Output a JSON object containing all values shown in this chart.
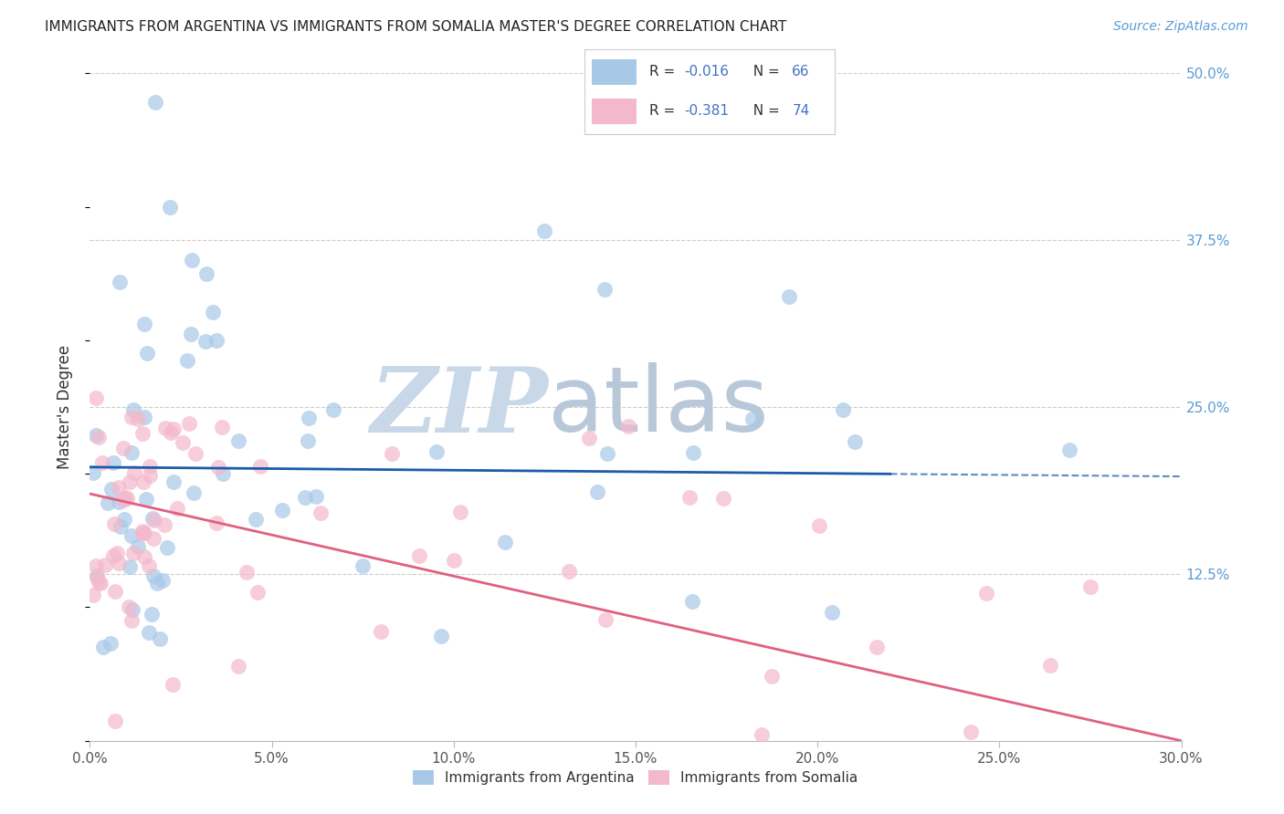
{
  "title": "IMMIGRANTS FROM ARGENTINA VS IMMIGRANTS FROM SOMALIA MASTER'S DEGREE CORRELATION CHART",
  "source": "Source: ZipAtlas.com",
  "ylabel": "Master's Degree",
  "r_argentina": -0.016,
  "n_argentina": 66,
  "r_somalia": -0.381,
  "n_somalia": 74,
  "xlim": [
    0.0,
    0.3
  ],
  "ylim": [
    0.0,
    0.5
  ],
  "xticks": [
    0.0,
    0.05,
    0.1,
    0.15,
    0.2,
    0.25,
    0.3
  ],
  "yticks_right": [
    0.125,
    0.25,
    0.375,
    0.5
  ],
  "color_argentina": "#a8c8e8",
  "color_somalia": "#f4b8cc",
  "trendline_argentina": "#1a5ca8",
  "trendline_somalia": "#e06080",
  "background_color": "#ffffff",
  "grid_color": "#cccccc",
  "watermark_zip": "ZIP",
  "watermark_atlas": "atlas",
  "watermark_color_zip": "#c8d8e8",
  "watermark_color_atlas": "#b8c8d8",
  "legend_text_color": "#333333",
  "legend_value_color": "#4472c4",
  "trendline_dash_start": 0.22,
  "trendline_end": 0.3,
  "argentina_trendline_y0": 0.205,
  "argentina_trendline_y1": 0.198,
  "somalia_trendline_y0": 0.185,
  "somalia_trendline_y1": 0.0
}
